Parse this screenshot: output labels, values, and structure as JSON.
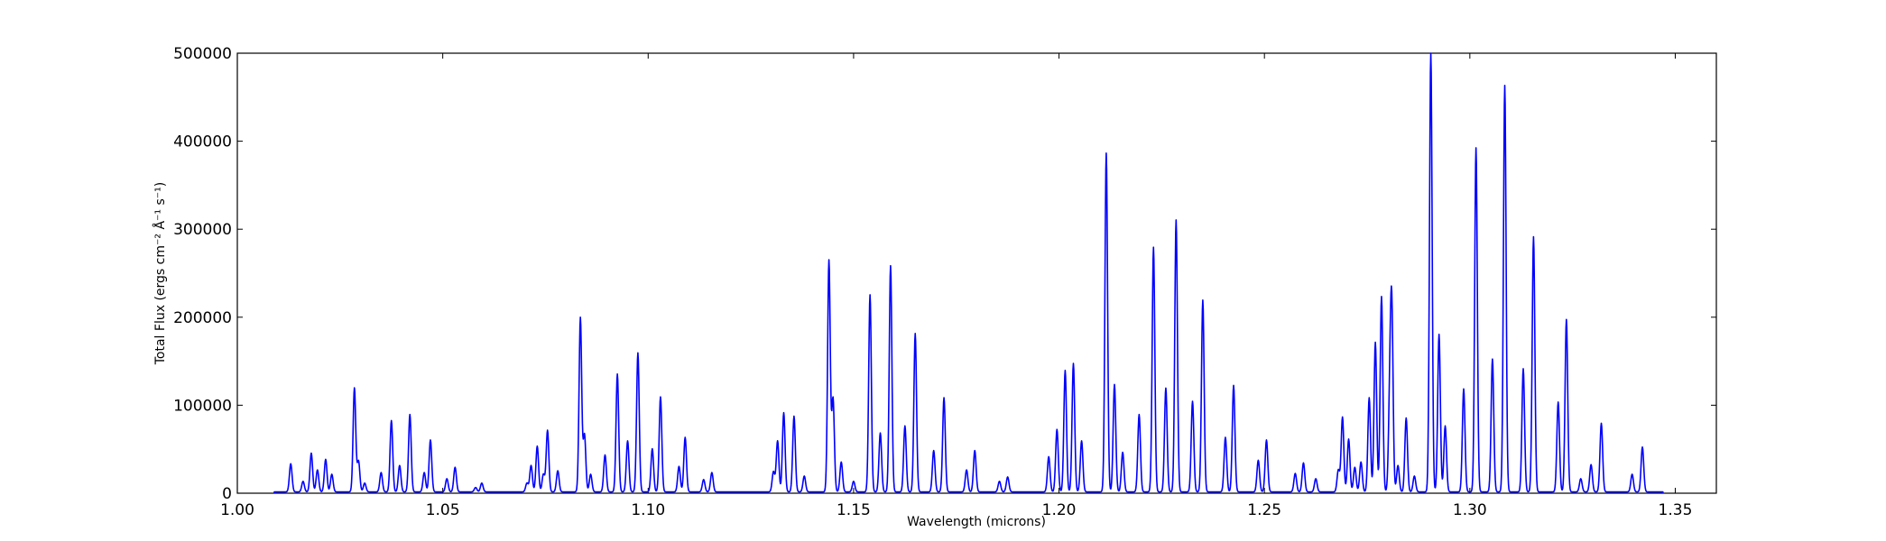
{
  "chart_data": {
    "type": "line",
    "title": "",
    "xlabel": "Wavelength (microns)",
    "ylabel": "Total Flux (ergs cm⁻² Å⁻¹ s⁻¹)",
    "xlim": [
      1.0,
      1.36
    ],
    "ylim": [
      0,
      500000
    ],
    "grid": false,
    "x_ticks": [
      "1.00",
      "1.05",
      "1.10",
      "1.15",
      "1.20",
      "1.25",
      "1.30",
      "1.35"
    ],
    "y_ticks": [
      "0",
      "100000",
      "200000",
      "300000",
      "400000",
      "500000"
    ],
    "line_color": "#0000ff",
    "series": [
      {
        "peaks": [
          [
            1.013,
            32000
          ],
          [
            1.016,
            12000
          ],
          [
            1.018,
            44000
          ],
          [
            1.0195,
            25000
          ],
          [
            1.0215,
            37000
          ],
          [
            1.023,
            20000
          ],
          [
            1.0285,
            118000
          ],
          [
            1.0295,
            35000
          ],
          [
            1.031,
            10000
          ],
          [
            1.035,
            22000
          ],
          [
            1.0375,
            81000
          ],
          [
            1.0395,
            30000
          ],
          [
            1.042,
            88000
          ],
          [
            1.0455,
            22000
          ],
          [
            1.047,
            59000
          ],
          [
            1.051,
            15000
          ],
          [
            1.053,
            28000
          ],
          [
            1.058,
            5000
          ],
          [
            1.0595,
            10000
          ],
          [
            1.0705,
            10000
          ],
          [
            1.0715,
            30000
          ],
          [
            1.073,
            52000
          ],
          [
            1.0745,
            20000
          ],
          [
            1.0755,
            70000
          ],
          [
            1.078,
            24000
          ],
          [
            1.0835,
            198000
          ],
          [
            1.0845,
            65000
          ],
          [
            1.086,
            20000
          ],
          [
            1.0895,
            42000
          ],
          [
            1.0925,
            134000
          ],
          [
            1.095,
            58000
          ],
          [
            1.0975,
            158000
          ],
          [
            1.101,
            49000
          ],
          [
            1.103,
            108000
          ],
          [
            1.1075,
            29000
          ],
          [
            1.109,
            62000
          ],
          [
            1.1135,
            14000
          ],
          [
            1.1155,
            22000
          ],
          [
            1.1305,
            23000
          ],
          [
            1.1315,
            58000
          ],
          [
            1.133,
            90000
          ],
          [
            1.1355,
            86000
          ],
          [
            1.138,
            18000
          ],
          [
            1.144,
            263000
          ],
          [
            1.145,
            106000
          ],
          [
            1.147,
            34000
          ],
          [
            1.15,
            12000
          ],
          [
            1.154,
            224000
          ],
          [
            1.1565,
            67000
          ],
          [
            1.159,
            257000
          ],
          [
            1.1625,
            75000
          ],
          [
            1.165,
            180000
          ],
          [
            1.1695,
            47000
          ],
          [
            1.172,
            107000
          ],
          [
            1.1775,
            25000
          ],
          [
            1.1795,
            47000
          ],
          [
            1.1855,
            12000
          ],
          [
            1.1875,
            17000
          ],
          [
            1.1975,
            40000
          ],
          [
            1.1995,
            71000
          ],
          [
            1.2015,
            138000
          ],
          [
            1.2035,
            146000
          ],
          [
            1.2055,
            58000
          ],
          [
            1.2115,
            385000
          ],
          [
            1.2135,
            122000
          ],
          [
            1.2155,
            45000
          ],
          [
            1.2195,
            88000
          ],
          [
            1.223,
            278000
          ],
          [
            1.226,
            118000
          ],
          [
            1.2285,
            309000
          ],
          [
            1.2325,
            103000
          ],
          [
            1.235,
            218000
          ],
          [
            1.2405,
            62000
          ],
          [
            1.2425,
            121000
          ],
          [
            1.2485,
            36000
          ],
          [
            1.2505,
            59000
          ],
          [
            1.2575,
            21000
          ],
          [
            1.2595,
            33000
          ],
          [
            1.2625,
            15000
          ],
          [
            1.268,
            25000
          ],
          [
            1.269,
            85000
          ],
          [
            1.2705,
            60000
          ],
          [
            1.272,
            28000
          ],
          [
            1.2735,
            34000
          ],
          [
            1.2755,
            107000
          ],
          [
            1.277,
            170000
          ],
          [
            1.2785,
            222000
          ],
          [
            1.2805,
            95000
          ],
          [
            1.281,
            200000
          ],
          [
            1.2825,
            30000
          ],
          [
            1.2845,
            84000
          ],
          [
            1.2865,
            18000
          ],
          [
            1.2905,
            500000
          ],
          [
            1.2925,
            179000
          ],
          [
            1.294,
            75000
          ],
          [
            1.2985,
            117000
          ],
          [
            1.3015,
            391000
          ],
          [
            1.3055,
            151000
          ],
          [
            1.3085,
            462000
          ],
          [
            1.313,
            140000
          ],
          [
            1.3155,
            290000
          ],
          [
            1.3215,
            102000
          ],
          [
            1.3235,
            196000
          ],
          [
            1.327,
            15000
          ],
          [
            1.3295,
            31000
          ],
          [
            1.332,
            78000
          ],
          [
            1.3395,
            20000
          ],
          [
            1.342,
            51000
          ]
        ]
      }
    ]
  }
}
